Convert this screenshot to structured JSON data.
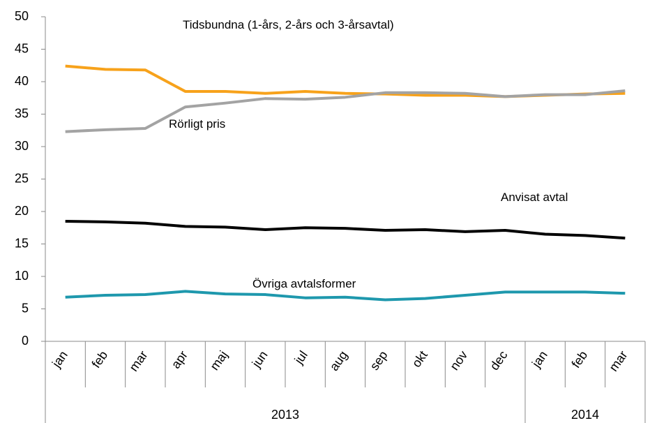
{
  "chart_data": {
    "type": "line",
    "categories": [
      "jan",
      "feb",
      "mar",
      "apr",
      "maj",
      "jun",
      "jul",
      "aug",
      "sep",
      "okt",
      "nov",
      "dec",
      "jan",
      "feb",
      "mar"
    ],
    "groups": [
      {
        "label": "2013",
        "count": 12
      },
      {
        "label": "2014",
        "count": 3
      }
    ],
    "series": [
      {
        "name": "Tidsbundna (1-års, 2-års och 3-årsavtal)",
        "color": "#f7a21b",
        "values": [
          42.4,
          41.9,
          41.8,
          38.5,
          38.5,
          38.2,
          38.5,
          38.2,
          38.1,
          37.9,
          37.9,
          37.7,
          37.9,
          38.1,
          38.2
        ]
      },
      {
        "name": "Rörligt pris",
        "color": "#a3a3a3",
        "values": [
          32.3,
          32.6,
          32.8,
          36.1,
          36.7,
          37.4,
          37.3,
          37.6,
          38.3,
          38.3,
          38.2,
          37.7,
          38.0,
          38.0,
          38.6
        ]
      },
      {
        "name": "Anvisat avtal",
        "color": "#000000",
        "values": [
          18.5,
          18.4,
          18.2,
          17.7,
          17.6,
          17.2,
          17.5,
          17.4,
          17.1,
          17.2,
          16.9,
          17.1,
          16.5,
          16.3,
          15.9
        ]
      },
      {
        "name": "Övriga avtalsformer",
        "color": "#1e98ad",
        "values": [
          6.8,
          7.1,
          7.2,
          7.7,
          7.3,
          7.2,
          6.7,
          6.8,
          6.4,
          6.6,
          7.1,
          7.6,
          7.6,
          7.6,
          7.4
        ]
      }
    ],
    "ylim": [
      0,
      50
    ],
    "yticks": [
      0,
      5,
      10,
      15,
      20,
      25,
      30,
      35,
      40,
      45,
      50
    ],
    "grid": false
  }
}
